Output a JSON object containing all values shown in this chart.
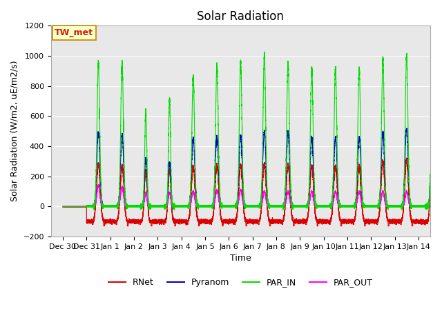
{
  "title": "Solar Radiation",
  "ylabel": "Solar Radiation (W/m2, uE/m2/s)",
  "xlabel": "Time",
  "ylim": [
    -200,
    1200
  ],
  "yticks": [
    -200,
    0,
    200,
    400,
    600,
    800,
    1000,
    1200
  ],
  "xtick_labels": [
    "Dec 30",
    "Dec 31",
    "Jan 1",
    "Jan 2",
    "Jan 3",
    "Jan 4",
    "Jan 5",
    "Jan 6",
    "Jan 7",
    "Jan 8",
    "Jan 9",
    "Jan 10",
    "Jan 11",
    "Jan 12",
    "Jan 13",
    "Jan 14"
  ],
  "annotation_text": "TW_met",
  "annotation_bg": "#ffffcc",
  "annotation_edge": "#bb8800",
  "annotation_color": "#cc2200",
  "colors": {
    "RNet": "#dd0000",
    "Pyranom": "#0000cc",
    "PAR_IN": "#00dd00",
    "PAR_OUT": "#ff00ff"
  },
  "legend_labels": [
    "RNet",
    "Pyranom",
    "PAR_IN",
    "PAR_OUT"
  ],
  "plot_bg": "#e8e8e8",
  "grid_color": "#ffffff",
  "title_fontsize": 12,
  "axis_label_fontsize": 9,
  "tick_fontsize": 8
}
